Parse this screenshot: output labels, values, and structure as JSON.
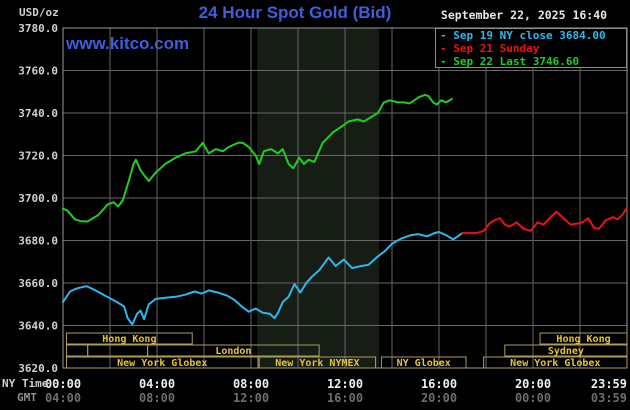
{
  "header": {
    "unit_label": "USD/oz",
    "title": "24 Hour Spot Gold (Bid)",
    "timestamp": "September 22, 2025 16:40",
    "watermark": "www.kitco.com"
  },
  "legend": {
    "items": [
      {
        "dash": "-",
        "label": "Sep 19 NY close 3684.00",
        "color": "#2fb6ec"
      },
      {
        "dash": "-",
        "label": "Sep 21 Sunday",
        "color": "#ee1111"
      },
      {
        "dash": "-",
        "label": "Sep 22 Last 3746.60",
        "color": "#22cd22"
      }
    ]
  },
  "axis_labels": {
    "ny_time": "NY Time",
    "gmt": "GMT"
  },
  "colors": {
    "background": "#000000",
    "title_blue": "#3f5edc",
    "grid": "#666666",
    "frame": "#999999",
    "shaded_band": "#151d15",
    "y_tick_text": "#d0d0d0",
    "ny_tick_text": "#f0f0f0",
    "gmt_tick_text": "#6e6e6e",
    "session_border": "#ac9c56",
    "session_text": "#e6c33b",
    "series_cyan": "#2fb6ec",
    "series_red": "#ee1111",
    "series_green": "#22cd22"
  },
  "chart_data": {
    "type": "line",
    "title": "24 Hour Spot Gold (Bid)",
    "ylabel": "USD/oz",
    "ylim": [
      3620,
      3780
    ],
    "y_ticks": [
      3780,
      3760,
      3740,
      3720,
      3700,
      3680,
      3660,
      3640,
      3620
    ],
    "xlim_hours": [
      0,
      24
    ],
    "grid_hour_step": 2,
    "x_ticks": [
      {
        "h": 0,
        "ny": "00:00",
        "gmt": "04:00"
      },
      {
        "h": 4,
        "ny": "04:00",
        "gmt": "08:00"
      },
      {
        "h": 8,
        "ny": "08:00",
        "gmt": "12:00"
      },
      {
        "h": 12,
        "ny": "12:00",
        "gmt": "16:00"
      },
      {
        "h": 16,
        "ny": "16:00",
        "gmt": "20:00"
      },
      {
        "h": 20,
        "ny": "20:00",
        "gmt": "00:00"
      },
      {
        "h": 23.983,
        "ny": "23:59",
        "gmt": "03:59"
      }
    ],
    "shaded_band_hours": [
      8.26,
      13.45
    ],
    "series": [
      {
        "name": "Sep 19 NY close",
        "color": "#2fb6ec",
        "points": [
          [
            0,
            3651
          ],
          [
            0.3,
            3656
          ],
          [
            0.6,
            3657.5
          ],
          [
            1.0,
            3658.5
          ],
          [
            1.3,
            3657
          ],
          [
            1.8,
            3654
          ],
          [
            2.3,
            3651
          ],
          [
            2.6,
            3649
          ],
          [
            2.75,
            3643.5
          ],
          [
            2.95,
            3640.5
          ],
          [
            3.15,
            3645.5
          ],
          [
            3.3,
            3647
          ],
          [
            3.45,
            3643
          ],
          [
            3.65,
            3650
          ],
          [
            3.95,
            3652.5
          ],
          [
            4.3,
            3653
          ],
          [
            4.8,
            3653.5
          ],
          [
            5.2,
            3654.5
          ],
          [
            5.6,
            3656
          ],
          [
            5.9,
            3655
          ],
          [
            6.2,
            3656.5
          ],
          [
            6.6,
            3655.5
          ],
          [
            7.0,
            3654
          ],
          [
            7.3,
            3652
          ],
          [
            7.6,
            3649
          ],
          [
            7.9,
            3646.5
          ],
          [
            8.2,
            3648
          ],
          [
            8.5,
            3646
          ],
          [
            8.8,
            3645.5
          ],
          [
            9.0,
            3643.5
          ],
          [
            9.15,
            3646
          ],
          [
            9.35,
            3651
          ],
          [
            9.6,
            3653.5
          ],
          [
            9.85,
            3659.5
          ],
          [
            10.1,
            3655.5
          ],
          [
            10.35,
            3660
          ],
          [
            10.6,
            3663
          ],
          [
            10.9,
            3666
          ],
          [
            11.3,
            3672
          ],
          [
            11.6,
            3668
          ],
          [
            11.95,
            3671
          ],
          [
            12.3,
            3667
          ],
          [
            12.7,
            3668
          ],
          [
            13.0,
            3668.5
          ],
          [
            13.4,
            3672.5
          ],
          [
            13.7,
            3675
          ],
          [
            14.0,
            3678.5
          ],
          [
            14.4,
            3681
          ],
          [
            14.8,
            3682.5
          ],
          [
            15.1,
            3683
          ],
          [
            15.5,
            3682
          ],
          [
            15.8,
            3683.5
          ],
          [
            16.0,
            3684
          ],
          [
            16.3,
            3682.5
          ],
          [
            16.6,
            3680.5
          ],
          [
            16.8,
            3682
          ],
          [
            17.0,
            3683.5
          ]
        ]
      },
      {
        "name": "Sep 21 Sunday",
        "color": "#ee1111",
        "points": [
          [
            17.0,
            3683.5
          ],
          [
            17.6,
            3683.5
          ],
          [
            17.9,
            3684.5
          ],
          [
            18.15,
            3688
          ],
          [
            18.35,
            3689.5
          ],
          [
            18.6,
            3690.5
          ],
          [
            18.8,
            3687.5
          ],
          [
            19.0,
            3686.5
          ],
          [
            19.3,
            3688.5
          ],
          [
            19.6,
            3685.5
          ],
          [
            19.9,
            3684.5
          ],
          [
            20.2,
            3688.5
          ],
          [
            20.45,
            3687.5
          ],
          [
            20.75,
            3691
          ],
          [
            21.0,
            3693.5
          ],
          [
            21.3,
            3690.5
          ],
          [
            21.6,
            3687.5
          ],
          [
            21.9,
            3688
          ],
          [
            22.1,
            3688.5
          ],
          [
            22.35,
            3690.5
          ],
          [
            22.6,
            3686
          ],
          [
            22.8,
            3685.5
          ],
          [
            23.1,
            3689.5
          ],
          [
            23.4,
            3691
          ],
          [
            23.6,
            3690
          ],
          [
            23.8,
            3692
          ],
          [
            24,
            3695.5
          ]
        ]
      },
      {
        "name": "Sep 22 Last",
        "color": "#22cd22",
        "points": [
          [
            0,
            3695
          ],
          [
            0.2,
            3694
          ],
          [
            0.5,
            3690
          ],
          [
            0.8,
            3689
          ],
          [
            1.05,
            3689
          ],
          [
            1.5,
            3692
          ],
          [
            1.9,
            3697
          ],
          [
            2.15,
            3698
          ],
          [
            2.35,
            3696
          ],
          [
            2.55,
            3699
          ],
          [
            2.8,
            3708
          ],
          [
            3.0,
            3716
          ],
          [
            3.1,
            3718
          ],
          [
            3.3,
            3713
          ],
          [
            3.5,
            3710
          ],
          [
            3.65,
            3708
          ],
          [
            3.95,
            3712
          ],
          [
            4.35,
            3716
          ],
          [
            4.8,
            3719
          ],
          [
            5.2,
            3721
          ],
          [
            5.65,
            3722
          ],
          [
            5.95,
            3726
          ],
          [
            6.2,
            3721
          ],
          [
            6.5,
            3723
          ],
          [
            6.8,
            3722
          ],
          [
            7.05,
            3724
          ],
          [
            7.45,
            3726
          ],
          [
            7.65,
            3726
          ],
          [
            7.9,
            3724
          ],
          [
            8.2,
            3720
          ],
          [
            8.35,
            3716
          ],
          [
            8.55,
            3722
          ],
          [
            8.85,
            3723
          ],
          [
            9.15,
            3721
          ],
          [
            9.35,
            3723
          ],
          [
            9.6,
            3716
          ],
          [
            9.8,
            3714
          ],
          [
            10.05,
            3719
          ],
          [
            10.25,
            3716
          ],
          [
            10.45,
            3718
          ],
          [
            10.7,
            3717
          ],
          [
            11.05,
            3726
          ],
          [
            11.5,
            3731
          ],
          [
            11.9,
            3734
          ],
          [
            12.15,
            3736
          ],
          [
            12.55,
            3737
          ],
          [
            12.8,
            3736
          ],
          [
            13.1,
            3738
          ],
          [
            13.4,
            3740
          ],
          [
            13.65,
            3745
          ],
          [
            13.9,
            3746
          ],
          [
            14.25,
            3745
          ],
          [
            14.5,
            3745
          ],
          [
            14.75,
            3744.5
          ],
          [
            14.95,
            3746
          ],
          [
            15.15,
            3747.5
          ],
          [
            15.4,
            3748.5
          ],
          [
            15.55,
            3748
          ],
          [
            15.75,
            3745
          ],
          [
            15.9,
            3744
          ],
          [
            16.1,
            3746
          ],
          [
            16.3,
            3745
          ],
          [
            16.55,
            3746.6
          ]
        ]
      }
    ],
    "sessions": [
      {
        "row": 0,
        "label": "Hong Kong",
        "start_h": 0.15,
        "end_h": 5.5
      },
      {
        "row": 0,
        "label": "Hong Kong",
        "start_h": 20.3,
        "end_h": 24
      },
      {
        "row": 1,
        "label": "",
        "start_h": 0.15,
        "end_h": 1.05
      },
      {
        "row": 1,
        "label": "",
        "start_h": 1.05,
        "end_h": 3.6
      },
      {
        "row": 1,
        "label": "London",
        "start_h": 3.6,
        "end_h": 10.9
      },
      {
        "row": 1,
        "label": "Sydney",
        "start_h": 18.8,
        "end_h": 24
      },
      {
        "row": 2,
        "label": "New York Globex",
        "start_h": 0.15,
        "end_h": 8.3
      },
      {
        "row": 2,
        "label": "New York NYMEX",
        "start_h": 8.35,
        "end_h": 13.3
      },
      {
        "row": 2,
        "label": "NY Globex",
        "start_h": 13.55,
        "end_h": 17.15
      },
      {
        "row": 2,
        "label": "New York Globex",
        "start_h": 17.9,
        "end_h": 24
      }
    ]
  }
}
